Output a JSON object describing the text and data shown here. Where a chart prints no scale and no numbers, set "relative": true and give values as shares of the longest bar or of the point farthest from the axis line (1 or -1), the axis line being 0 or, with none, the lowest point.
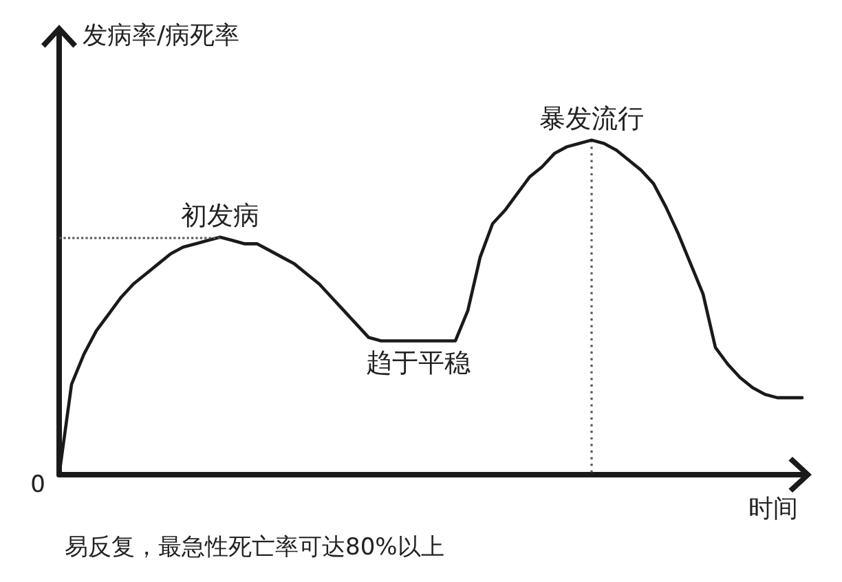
{
  "chart_data": {
    "type": "line",
    "relative": true,
    "ylabel": "发病率/病死率",
    "xlabel": "时间",
    "categories": [
      null,
      null,
      null,
      null,
      null,
      null,
      null,
      null,
      null,
      null,
      null,
      null,
      null,
      null,
      null,
      null,
      null,
      null,
      null,
      null,
      null,
      null,
      null,
      null,
      null,
      null,
      null,
      null,
      null,
      null,
      null,
      null,
      null,
      null,
      null,
      null,
      null,
      null,
      null,
      null,
      null,
      null,
      null,
      null,
      null,
      null,
      null,
      null,
      null,
      null,
      null,
      null,
      null,
      null,
      null,
      null,
      null,
      null,
      null,
      null,
      null
    ],
    "values": [
      0,
      0.27,
      0.36,
      0.43,
      0.48,
      0.53,
      0.57,
      0.6,
      0.63,
      0.66,
      0.68,
      0.69,
      0.7,
      0.71,
      0.7,
      0.69,
      0.69,
      0.67,
      0.65,
      0.63,
      0.6,
      0.57,
      0.53,
      0.49,
      0.45,
      0.41,
      0.4,
      0.4,
      0.4,
      0.4,
      0.4,
      0.4,
      0.4,
      0.49,
      0.65,
      0.75,
      0.79,
      0.84,
      0.89,
      0.92,
      0.96,
      0.98,
      0.99,
      1,
      0.99,
      0.97,
      0.94,
      0.91,
      0.87,
      0.8,
      0.72,
      0.63,
      0.54,
      0.38,
      0.33,
      0.29,
      0.26,
      0.24,
      0.23,
      0.23,
      0.23
    ],
    "color": "#1a1a1a",
    "marker": "none",
    "ref_lines": [
      {
        "axis": "y",
        "value": 0.71,
        "line_style": "dotted",
        "color": "#555555"
      }
    ],
    "annotations": [
      {
        "text": "初发病",
        "y": 0.71
      },
      {
        "text": "趋于平稳",
        "y": 0.4
      },
      {
        "text": "暴发流行",
        "y": 1
      },
      "0",
      "易反复，最急性死亡率可达80%以上"
    ]
  }
}
